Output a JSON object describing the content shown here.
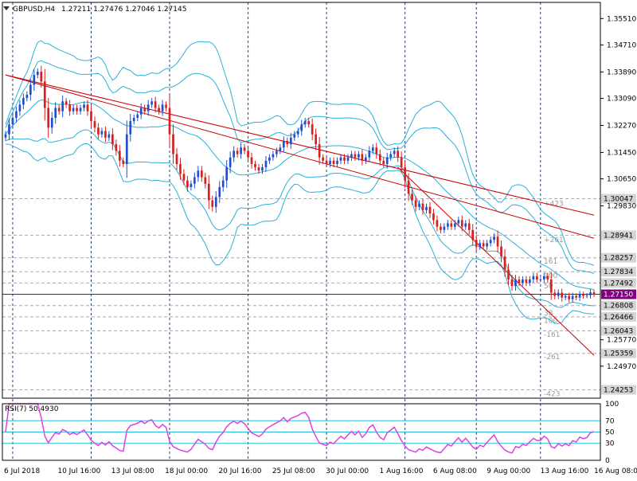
{
  "header": {
    "symbol": "GBPUSD,H4",
    "ohlc": "1.27211 1.27476 1.27046 1.27145"
  },
  "rsi": {
    "label": "RSI(7) 50.4930",
    "levels": [
      100,
      70,
      50,
      30,
      0
    ]
  },
  "price_axis_labels": [
    "1.35510",
    "1.34710",
    "1.33890",
    "1.33090",
    "1.32270",
    "1.31450",
    "1.30650",
    "1.29830",
    "1.25770",
    "1.24970"
  ],
  "level_tags": [
    {
      "price": 1.30047,
      "text": "1.30047",
      "bg": "#d4d4d4",
      "fg": "#000000"
    },
    {
      "price": 1.28941,
      "text": "1.28941",
      "bg": "#d4d4d4",
      "fg": "#000000"
    },
    {
      "price": 1.28257,
      "text": "1.28257",
      "bg": "#d4d4d4",
      "fg": "#000000"
    },
    {
      "price": 1.27834,
      "text": "1.27834",
      "bg": "#d4d4d4",
      "fg": "#000000"
    },
    {
      "price": 1.27492,
      "text": "1.27492",
      "bg": "#d4d4d4",
      "fg": "#000000"
    },
    {
      "price": 1.2715,
      "text": "1.27150",
      "bg": "#800080",
      "fg": "#ffffff"
    },
    {
      "price": 1.26808,
      "text": "1.26808",
      "bg": "#d4d4d4",
      "fg": "#000000"
    },
    {
      "price": 1.26466,
      "text": "1.26466",
      "bg": "#d4d4d4",
      "fg": "#000000"
    },
    {
      "price": 1.26043,
      "text": "1.26043",
      "bg": "#d4d4d4",
      "fg": "#000000"
    },
    {
      "price": 1.25359,
      "text": "1.25359",
      "bg": "#d4d4d4",
      "fg": "#000000"
    },
    {
      "price": 1.24253,
      "text": "1.24253",
      "bg": "#d4d4d4",
      "fg": "#000000"
    }
  ],
  "level_notes": [
    {
      "price": 1.299,
      "text": "+423"
    },
    {
      "price": 1.288,
      "text": "+261"
    },
    {
      "price": 1.2815,
      "text": "161"
    },
    {
      "price": 1.2772,
      "text": "100"
    },
    {
      "price": 1.274,
      "text": "50"
    },
    {
      "price": 1.2658,
      "text": "38"
    },
    {
      "price": 1.2635,
      "text": "100"
    },
    {
      "price": 1.2593,
      "text": "-161"
    },
    {
      "price": 1.2525,
      "text": "-261"
    },
    {
      "price": 1.2413,
      "text": "-423"
    }
  ],
  "time_axis_labels": [
    "6 Jul 2018",
    "10 Jul 16:00",
    "13 Jul 08:00",
    "18 Jul 00:00",
    "20 Jul 16:00",
    "25 Jul 08:00",
    "30 Jul 00:00",
    "1 Aug 16:00",
    "6 Aug 08:00",
    "9 Aug 00:00",
    "13 Aug 16:00",
    "16 Aug 08:00"
  ],
  "colors": {
    "bull": "#1f4fd1",
    "bear": "#d81e1e",
    "bands": "#2ab0d8",
    "trendline": "#cc0000",
    "rsi_line": "#e040e0",
    "rsi_level": "#22c0d8",
    "grid": "#1f3f9f",
    "bid_line": "#800080",
    "frame": "#000000"
  },
  "chart_data": {
    "type": "candlestick",
    "symbol": "GBPUSD",
    "timeframe": "H4",
    "ylim": [
      1.24,
      1.36
    ],
    "closes": [
      1.32,
      1.323,
      1.325,
      1.327,
      1.329,
      1.331,
      1.332,
      1.335,
      1.338,
      1.339,
      1.336,
      1.328,
      1.322,
      1.325,
      1.328,
      1.327,
      1.33,
      1.329,
      1.327,
      1.328,
      1.327,
      1.328,
      1.329,
      1.327,
      1.324,
      1.322,
      1.32,
      1.321,
      1.319,
      1.32,
      1.317,
      1.315,
      1.312,
      1.311,
      1.32,
      1.324,
      1.325,
      1.326,
      1.328,
      1.327,
      1.329,
      1.33,
      1.328,
      1.327,
      1.329,
      1.328,
      1.32,
      1.314,
      1.311,
      1.308,
      1.306,
      1.304,
      1.305,
      1.307,
      1.309,
      1.307,
      1.305,
      1.3,
      1.298,
      1.301,
      1.304,
      1.306,
      1.31,
      1.313,
      1.315,
      1.314,
      1.316,
      1.315,
      1.313,
      1.311,
      1.31,
      1.309,
      1.31,
      1.312,
      1.313,
      1.314,
      1.315,
      1.316,
      1.318,
      1.317,
      1.319,
      1.32,
      1.321,
      1.323,
      1.324,
      1.323,
      1.32,
      1.317,
      1.313,
      1.312,
      1.311,
      1.312,
      1.311,
      1.312,
      1.313,
      1.312,
      1.313,
      1.314,
      1.313,
      1.314,
      1.312,
      1.313,
      1.315,
      1.316,
      1.314,
      1.312,
      1.311,
      1.313,
      1.314,
      1.315,
      1.313,
      1.31,
      1.306,
      1.302,
      1.3,
      1.298,
      1.299,
      1.297,
      1.298,
      1.296,
      1.294,
      1.292,
      1.291,
      1.292,
      1.293,
      1.292,
      1.293,
      1.294,
      1.292,
      1.293,
      1.291,
      1.288,
      1.286,
      1.287,
      1.286,
      1.287,
      1.288,
      1.289,
      1.286,
      1.283,
      1.279,
      1.276,
      1.274,
      1.276,
      1.275,
      1.276,
      1.275,
      1.276,
      1.277,
      1.276,
      1.276,
      1.277,
      1.276,
      1.272,
      1.271,
      1.272,
      1.2705,
      1.271,
      1.27,
      1.271,
      1.2705,
      1.2715,
      1.271,
      1.2712,
      1.2721,
      1.2715
    ],
    "last": {
      "open": 1.27211,
      "high": 1.27476,
      "low": 1.27046,
      "close": 1.27145
    },
    "trendlines": [
      {
        "from": [
          0,
          1.338
        ],
        "to": [
          165,
          1.2955
        ]
      },
      {
        "from": [
          0,
          1.338
        ],
        "to": [
          165,
          1.2885
        ]
      },
      {
        "from": [
          110,
          1.31
        ],
        "to": [
          165,
          1.253
        ]
      }
    ],
    "rsi_period": 7,
    "rsi_last": 50.493,
    "rsi_ylim": [
      0,
      100
    ]
  }
}
